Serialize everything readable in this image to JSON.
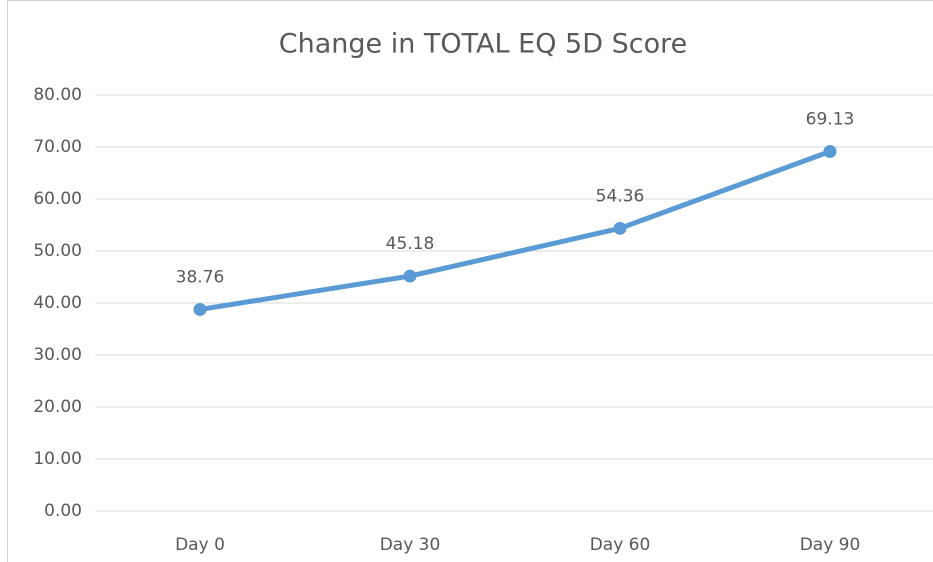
{
  "chart_data": {
    "type": "line",
    "title": "Change in TOTAL EQ 5D Score",
    "categories": [
      "Day 0",
      "Day 30",
      "Day 60",
      "Day 90"
    ],
    "series": [
      {
        "name": "TOTAL EQ 5D Score",
        "color": "#5b9bd5",
        "values": [
          38.76,
          45.18,
          54.36,
          69.13
        ]
      }
    ],
    "ylim": [
      0,
      80
    ],
    "yticks": [
      {
        "value": 0,
        "label": "0.00"
      },
      {
        "value": 10,
        "label": "10.00"
      },
      {
        "value": 20,
        "label": "20.00"
      },
      {
        "value": 30,
        "label": "30.00"
      },
      {
        "value": 40,
        "label": "40.00"
      },
      {
        "value": 50,
        "label": "50.00"
      },
      {
        "value": 60,
        "label": "60.00"
      },
      {
        "value": 70,
        "label": "70.00"
      },
      {
        "value": 80,
        "label": "80.00"
      }
    ],
    "grid": true
  }
}
